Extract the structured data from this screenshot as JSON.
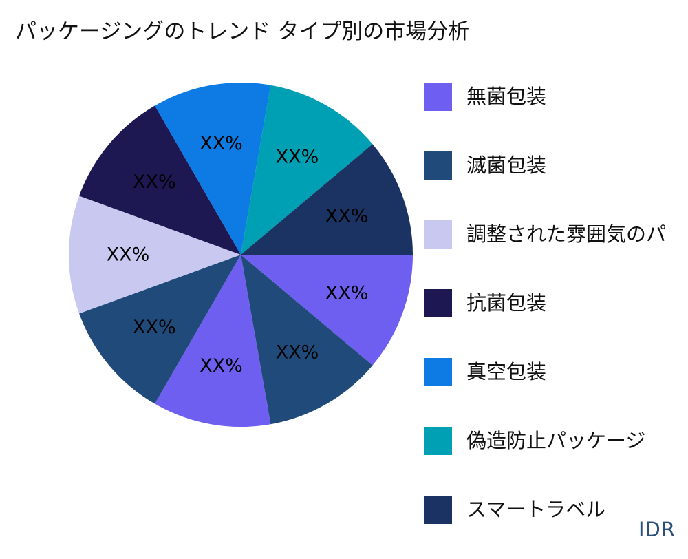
{
  "title": "パッケージングのトレンド タイプ別の市場分析",
  "brand": "IDR",
  "chart_data": {
    "type": "pie",
    "legend_position": "right",
    "series": [
      {
        "name": "無菌包装",
        "color": "#6e5ff0",
        "value": 1,
        "label": "XX%"
      },
      {
        "name": "滅菌包装",
        "color": "#1f4a7a",
        "value": 1,
        "label": "XX%"
      },
      {
        "name": "調整された雰囲気のパ",
        "color": "#c8c8f0",
        "value": 1,
        "label": "XX%"
      },
      {
        "name": "抗菌包装",
        "color": "#1d1752",
        "value": 1,
        "label": "XX%"
      },
      {
        "name": "真空包装",
        "color": "#0d7be3",
        "value": 1,
        "label": "XX%"
      },
      {
        "name": "偽造防止パッケージ",
        "color": "#00a0b4",
        "value": 1,
        "label": "XX%"
      },
      {
        "name": "スマートラベル",
        "color": "#1b3362",
        "value": 1,
        "label": "XX%"
      }
    ],
    "slices": [
      {
        "series": 0,
        "value": 1,
        "label": "XX%"
      },
      {
        "series": 1,
        "value": 1,
        "label": "XX%"
      },
      {
        "series": 0,
        "value": 1,
        "label": "XX%"
      },
      {
        "series": 1,
        "value": 1,
        "label": "XX%"
      },
      {
        "series": 2,
        "value": 1,
        "label": "XX%"
      },
      {
        "series": 3,
        "value": 1,
        "label": "XX%"
      },
      {
        "series": 4,
        "value": 1,
        "label": "XX%"
      },
      {
        "series": 5,
        "value": 1,
        "label": "XX%"
      },
      {
        "series": 6,
        "value": 1,
        "label": "XX%"
      }
    ]
  }
}
